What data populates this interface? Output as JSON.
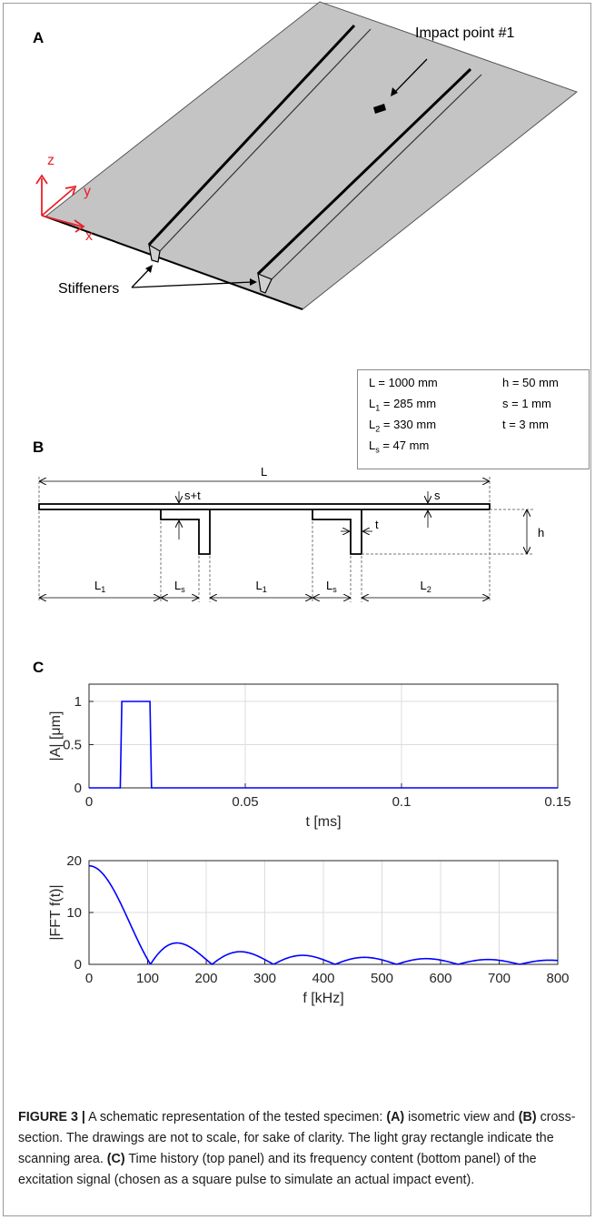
{
  "panel_labels": {
    "a": "A",
    "b": "B",
    "c": "C"
  },
  "panel_a": {
    "impact_label": "Impact point #1",
    "stiffeners_label": "Stiffeners",
    "axes": {
      "x": "x",
      "y": "y",
      "z": "z"
    },
    "colors": {
      "plate": "#c4c4c4",
      "axes": "#e8212b"
    }
  },
  "params": {
    "L": "L = 1000 mm",
    "L1": {
      "main": "L",
      "sub": "1",
      "rest": " = 285 mm"
    },
    "L2": {
      "main": "L",
      "sub": "2",
      "rest": " = 330 mm"
    },
    "Ls": {
      "main": "L",
      "sub": "s",
      "rest": " = 47 mm"
    },
    "h": "h = 50 mm",
    "s": "s = 1 mm",
    "t": "t = 3 mm"
  },
  "panel_b": {
    "L": "L",
    "s_plus_t": "s+t",
    "s": "s",
    "t": "t",
    "h": "h",
    "segments": [
      {
        "main": "L",
        "sub": "1"
      },
      {
        "main": "L",
        "sub": "s"
      },
      {
        "main": "L",
        "sub": "1"
      },
      {
        "main": "L",
        "sub": "s"
      },
      {
        "main": "L",
        "sub": "2"
      }
    ]
  },
  "chart_data": [
    {
      "type": "line",
      "title": "",
      "xlabel": "t [ms]",
      "ylabel": "|A| [μm]",
      "xlim": [
        0,
        0.15
      ],
      "ylim": [
        0,
        1.2
      ],
      "xticks": [
        "0",
        "0.05",
        "0.1",
        "0.15"
      ],
      "yticks": [
        "0",
        "0.5",
        "1"
      ],
      "grid": true,
      "color": "#0000ff",
      "x": [
        0,
        0.01,
        0.0105,
        0.0195,
        0.02,
        0.15
      ],
      "y": [
        0,
        0,
        1,
        1,
        0,
        0
      ]
    },
    {
      "type": "line",
      "title": "",
      "xlabel": "f [kHz]",
      "ylabel": "|FFT f(t)|",
      "xlim": [
        0,
        800
      ],
      "ylim": [
        0,
        20
      ],
      "xticks": [
        "0",
        "100",
        "200",
        "300",
        "400",
        "500",
        "600",
        "700",
        "800"
      ],
      "yticks": [
        "0",
        "10",
        "20"
      ],
      "grid": true,
      "color": "#0000ff",
      "peak": 19,
      "null_spacing_khz": 105
    }
  ],
  "caption": {
    "figure": "FIGURE 3 |",
    "p1": " A schematic representation of the tested specimen: ",
    "ref_a": "(A)",
    "p2": " isometric view and ",
    "ref_b": "(B)",
    "p3": " cross-section. The drawings are not to scale, for sake of clarity. The light gray rectangle indicate the scanning area. ",
    "ref_c": "(C)",
    "p4": " Time history (top panel) and its frequency content (bottom panel) of the excitation signal (chosen as a square pulse to simulate an actual impact event)."
  }
}
